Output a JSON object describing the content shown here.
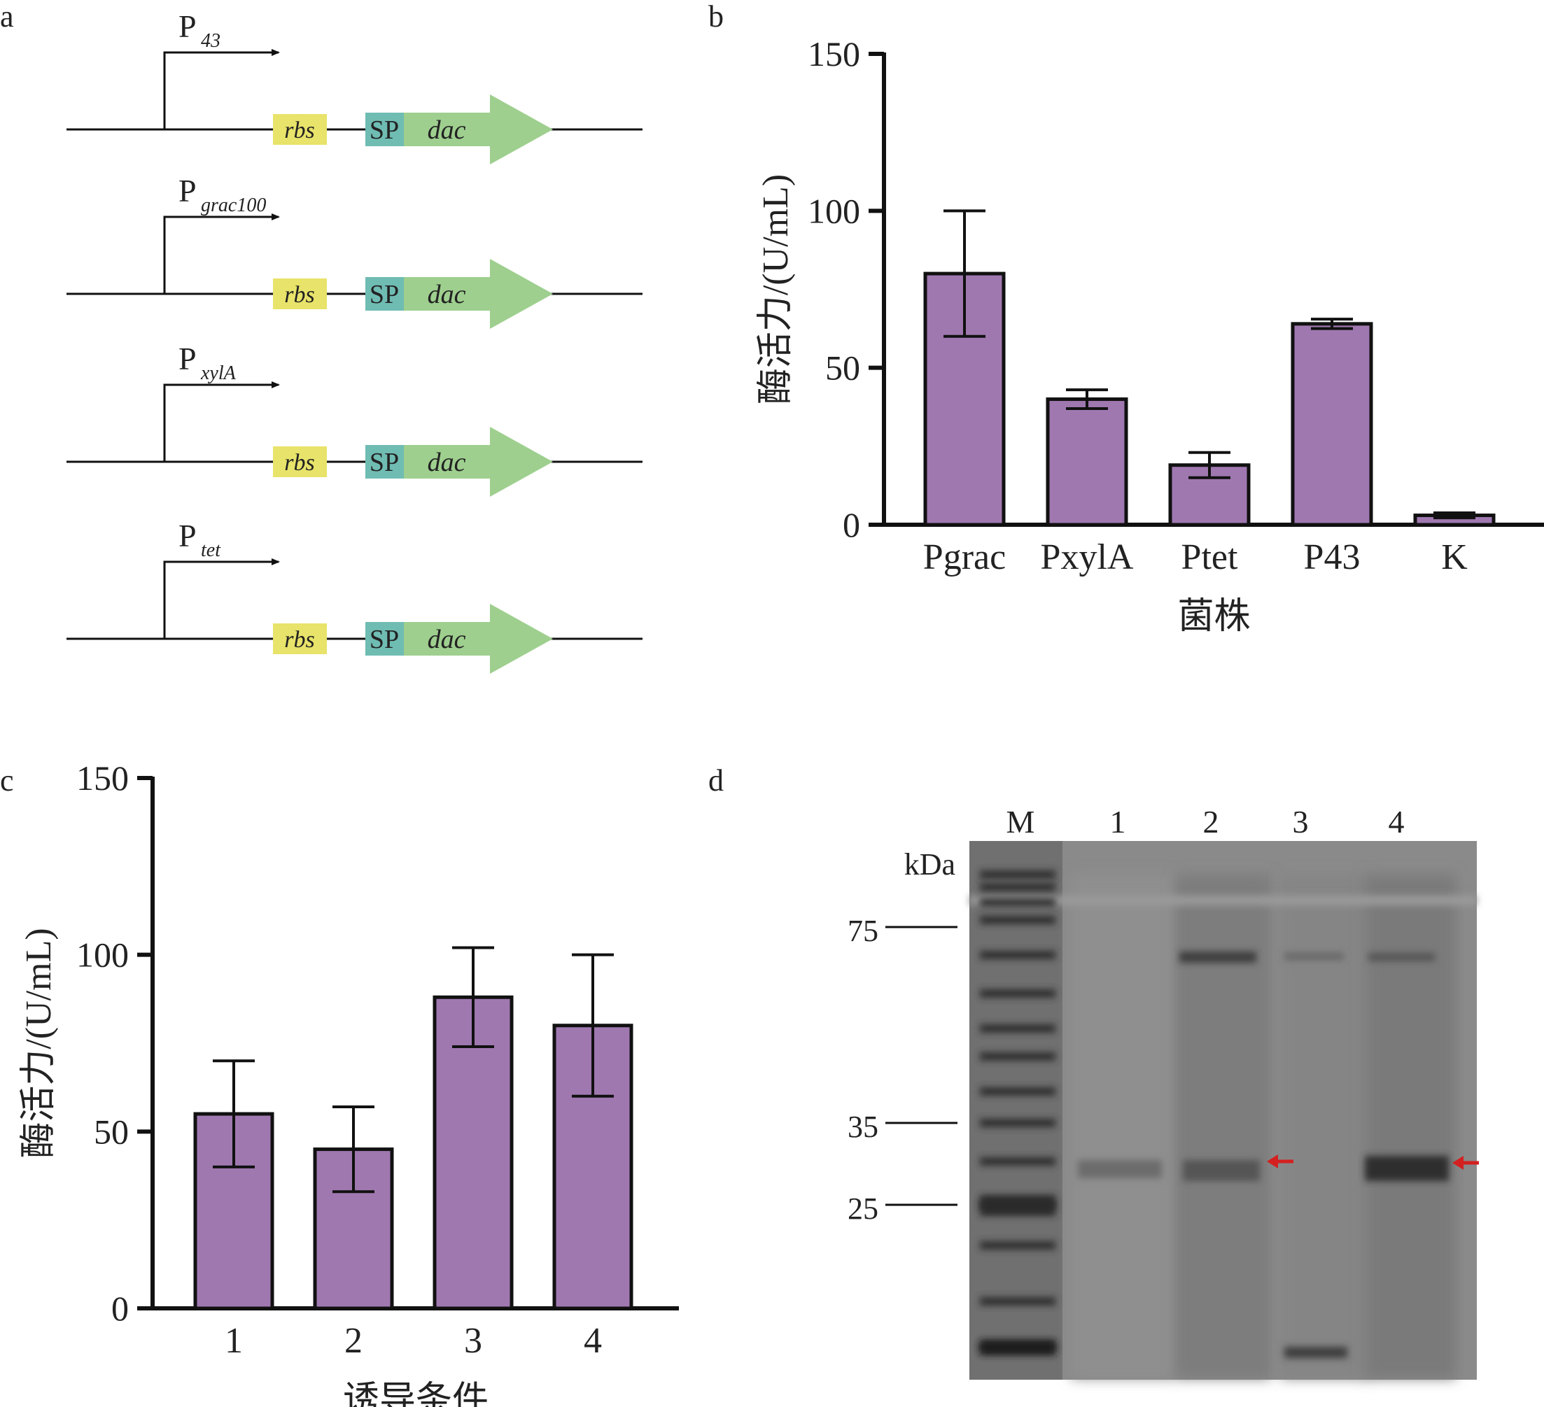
{
  "panels": {
    "a": {
      "label": "a",
      "constructs": [
        {
          "promoter": "P",
          "sub": "43"
        },
        {
          "promoter": "P",
          "sub": "grac100"
        },
        {
          "promoter": "P",
          "sub": "xylA"
        },
        {
          "promoter": "P",
          "sub": "tet"
        }
      ],
      "rbs": "rbs",
      "sp": "SP",
      "gene": "dac",
      "colors": {
        "rbs": "#e8e36a",
        "sp": "#6fbcb3",
        "gene": "#9ecf8e"
      }
    },
    "b": {
      "label": "b"
    },
    "c": {
      "label": "c"
    },
    "d": {
      "label": "d",
      "kda": "kDa",
      "lanes": [
        "M",
        "1",
        "2",
        "3",
        "4"
      ],
      "markers": [
        "75",
        "35",
        "25"
      ],
      "arrow_color": "#d42020"
    }
  },
  "chart_data": [
    {
      "type": "bar",
      "panel": "b",
      "categories": [
        "Pgrac",
        "PxylA",
        "Ptet",
        "P43",
        "K"
      ],
      "values": [
        80,
        40,
        19,
        64,
        3
      ],
      "errors": [
        20,
        3,
        4,
        1.5,
        0.8
      ],
      "ylabel": "酶活力/(U/mL)",
      "xlabel": "菌株",
      "ylim": [
        0,
        150
      ],
      "yticks": [
        "0",
        "50",
        "100",
        "150"
      ],
      "bar_color": "#a078b0"
    },
    {
      "type": "bar",
      "panel": "c",
      "categories": [
        "1",
        "2",
        "3",
        "4"
      ],
      "values": [
        55,
        45,
        88,
        80
      ],
      "errors": [
        15,
        12,
        14,
        20
      ],
      "ylabel": "酶活力/(U/mL)",
      "xlabel": "诱导条件",
      "ylim": [
        0,
        150
      ],
      "yticks": [
        "0",
        "50",
        "100",
        "150"
      ],
      "bar_color": "#a078b0"
    }
  ]
}
